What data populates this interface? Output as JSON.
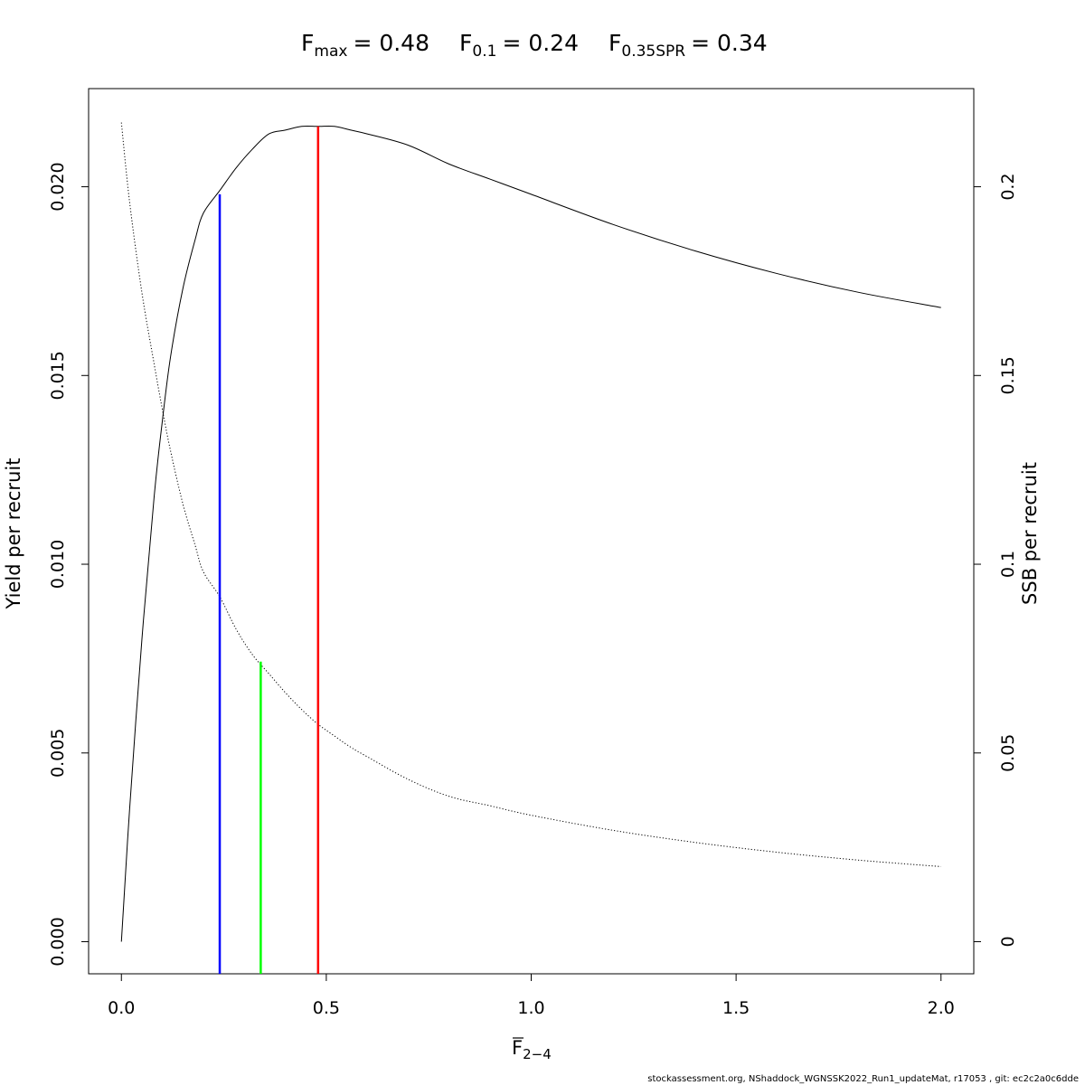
{
  "chart_data": {
    "type": "line",
    "title": {
      "parts": [
        {
          "base": "F",
          "sub": "max",
          "eq": "= 0.48"
        },
        {
          "base": "F",
          "sub": "0.1",
          "eq": "= 0.24"
        },
        {
          "base": "F",
          "sub": "0.35SPR",
          "eq": "= 0.34"
        }
      ]
    },
    "xlabel": {
      "base": "F",
      "sub": "2−4"
    },
    "ylabel_left": "Yield per recruit",
    "ylabel_right": "SSB per recruit",
    "xlim": [
      -0.08,
      2.08
    ],
    "ylim_left": [
      -0.00085,
      0.0226
    ],
    "ylim_right": [
      -0.0085,
      0.226
    ],
    "x_ticks": [
      0,
      0.5,
      1,
      1.5,
      2
    ],
    "x_tick_labels": [
      "0.0",
      "0.5",
      "1.0",
      "1.5",
      "2.0"
    ],
    "y_left_ticks": [
      0,
      0.005,
      0.01,
      0.015,
      0.02
    ],
    "y_left_tick_labels": [
      "0.000",
      "0.005",
      "0.010",
      "0.015",
      "0.020"
    ],
    "y_right_ticks": [
      0,
      0.05,
      0.1,
      0.15,
      0.2
    ],
    "y_right_tick_labels": [
      "0",
      "0.05",
      "0.1",
      "0.15",
      "0.2"
    ],
    "series": [
      {
        "axis": "left",
        "style": "solid",
        "color": "#000000",
        "x": [
          0,
          0.02,
          0.05,
          0.08,
          0.1,
          0.12,
          0.15,
          0.18,
          0.2,
          0.24,
          0.28,
          0.32,
          0.36,
          0.4,
          0.44,
          0.48,
          0.52,
          0.56,
          0.6,
          0.7,
          0.8,
          0.9,
          1.0,
          1.2,
          1.4,
          1.6,
          1.8,
          2.0
        ],
        "y": [
          0,
          0.0035,
          0.008,
          0.0118,
          0.0138,
          0.0155,
          0.0173,
          0.0186,
          0.0193,
          0.0199,
          0.0205,
          0.021,
          0.0214,
          0.0215,
          0.0216,
          0.0216,
          0.0216,
          0.0215,
          0.0214,
          0.0211,
          0.0206,
          0.0202,
          0.0198,
          0.019,
          0.0183,
          0.0177,
          0.0172,
          0.0168
        ]
      },
      {
        "axis": "right",
        "style": "dotted",
        "color": "#000000",
        "x": [
          0,
          0.02,
          0.05,
          0.08,
          0.1,
          0.12,
          0.15,
          0.18,
          0.2,
          0.24,
          0.28,
          0.32,
          0.36,
          0.4,
          0.44,
          0.48,
          0.52,
          0.56,
          0.6,
          0.7,
          0.8,
          0.9,
          1.0,
          1.2,
          1.4,
          1.6,
          1.8,
          2.0
        ],
        "y": [
          0.217,
          0.196,
          0.172,
          0.153,
          0.141,
          0.13,
          0.116,
          0.105,
          0.098,
          0.0914,
          0.0828,
          0.076,
          0.071,
          0.066,
          0.0615,
          0.0576,
          0.0545,
          0.0515,
          0.049,
          0.043,
          0.0385,
          0.036,
          0.0335,
          0.0295,
          0.0263,
          0.0237,
          0.0216,
          0.0199
        ]
      }
    ],
    "reference_lines": [
      {
        "label": "F0.1",
        "x": 0.24,
        "y_top": 0.0198,
        "axis": "left",
        "color": "#0000ff"
      },
      {
        "label": "F0.35SPR",
        "x": 0.34,
        "y_top": 0.0742,
        "axis": "right",
        "color": "#00ff00"
      },
      {
        "label": "Fmax",
        "x": 0.48,
        "y_top": 0.0216,
        "axis": "left",
        "color": "#ff0000"
      }
    ],
    "grid": false,
    "legend": "none"
  },
  "footer": "stockassessment.org, NShaddock_WGNSSK2022_Run1_updateMat, r17053 , git: ec2c2a0c6dde"
}
